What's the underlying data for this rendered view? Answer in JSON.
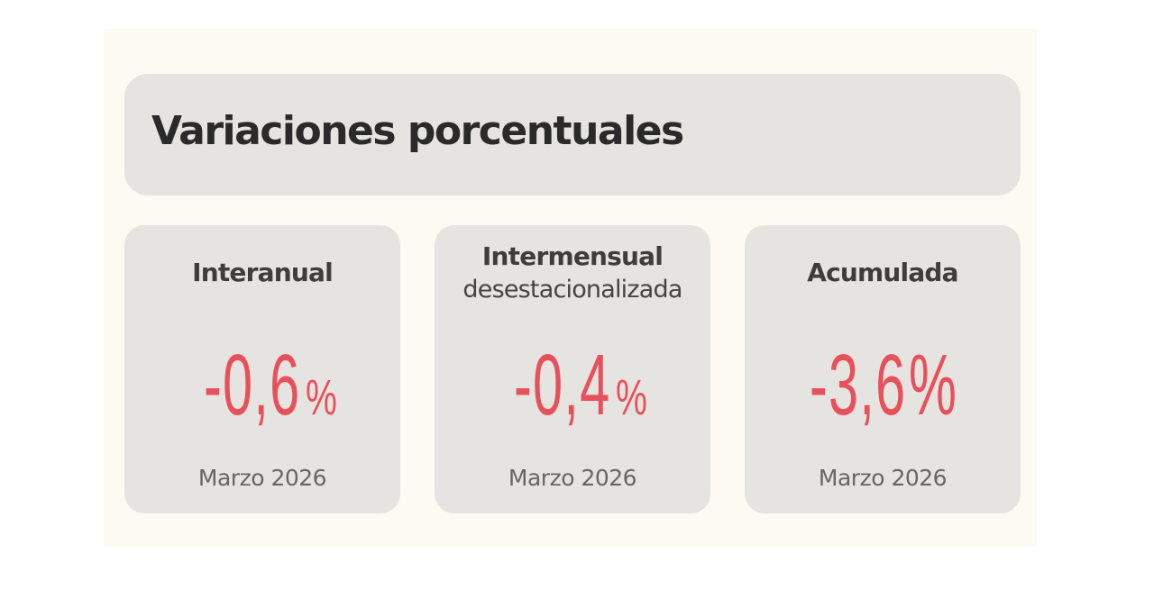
{
  "header": {
    "title": "Variaciones porcentuales"
  },
  "cards": [
    {
      "title": "Interanual",
      "subtitle": "",
      "value": "-0,6",
      "unit": "%",
      "date": "Marzo 2026"
    },
    {
      "title": "Intermensual",
      "subtitle": "desestacionalizada",
      "value": "-0,4",
      "unit": "%",
      "date": "Marzo 2026"
    },
    {
      "title": "Acumulada",
      "subtitle": "",
      "value": "-3,6",
      "unit": "%",
      "date": "Marzo 2026"
    }
  ],
  "colors": {
    "background": "#fdfaf1",
    "panel": "#e6e4e0",
    "accent": "#e8505b",
    "title_text": "#2a2a2a",
    "date_text": "#666666"
  }
}
